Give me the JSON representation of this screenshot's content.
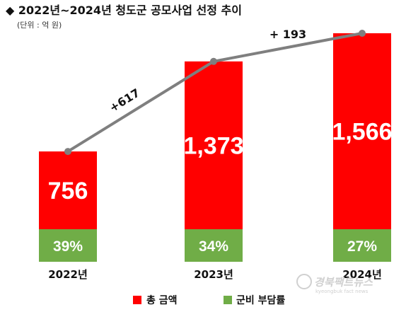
{
  "chart_data": {
    "type": "bar",
    "title": "◆ 2022년~2024년 청도군 공모사업 선정 추이",
    "subtitle": "(단위 : 억 원)",
    "categories": [
      "2022년",
      "2023년",
      "2024년"
    ],
    "series": [
      {
        "name": "총 금액",
        "values": [
          756,
          1373,
          1566
        ],
        "labels": [
          "756",
          "1,373",
          "1,566"
        ],
        "color": "#ff0000"
      },
      {
        "name": "군비 부담률",
        "values": [
          39,
          34,
          27
        ],
        "labels": [
          "39%",
          "34%",
          "27%"
        ],
        "color": "#70ad47"
      }
    ],
    "trend_line": {
      "color": "#7f7f7f"
    },
    "annotations": [
      "+617",
      "+ 193"
    ],
    "legend": {
      "placement": "bottom"
    },
    "grid": false
  },
  "watermark": {
    "text": "경북팩트뉴스",
    "subtext": "kyeongbuk fact news"
  }
}
